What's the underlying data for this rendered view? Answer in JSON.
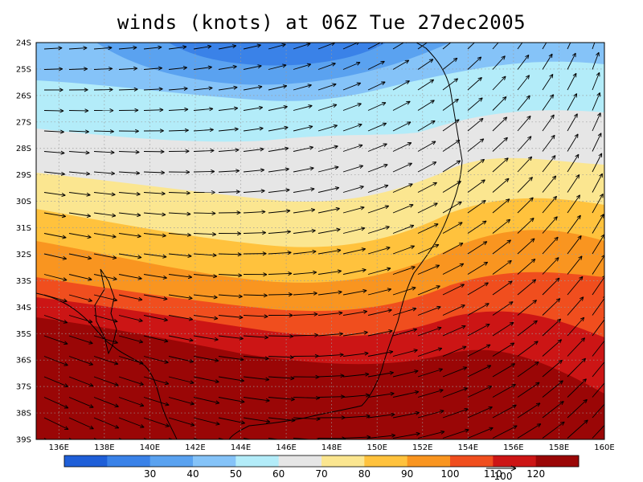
{
  "title": "winds (knots) at 06Z Tue 27dec2005",
  "map": {
    "lon_range": [
      135,
      160
    ],
    "lat_range": [
      -39,
      -24
    ],
    "lon_ticks": [
      "136E",
      "138E",
      "140E",
      "142E",
      "144E",
      "146E",
      "148E",
      "150E",
      "152E",
      "154E",
      "156E",
      "158E",
      "160E"
    ],
    "lat_ticks": [
      "24S",
      "25S",
      "26S",
      "27S",
      "28S",
      "29S",
      "30S",
      "31S",
      "32S",
      "33S",
      "34S",
      "35S",
      "36S",
      "37S",
      "38S",
      "39S"
    ],
    "grid": "dotted"
  },
  "colorbar": {
    "colors": [
      "#1f5fd8",
      "#3a82e8",
      "#5aa2f0",
      "#85c3f8",
      "#b3ecf9",
      "#e6e6e6",
      "#fbe690",
      "#ffc23d",
      "#f99520",
      "#f04e1e",
      "#cc1515",
      "#9a0606"
    ],
    "labels": [
      "30",
      "40",
      "50",
      "60",
      "70",
      "80",
      "90",
      "100",
      "110",
      "120"
    ],
    "reference_vector": "100"
  },
  "colors": {
    "land_outline": "#000000",
    "arrow": "#000000",
    "grid": "#9a9a9a"
  }
}
